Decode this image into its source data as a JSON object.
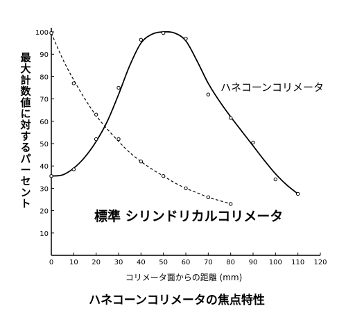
{
  "chart_data": {
    "type": "line",
    "title": "ハネコーンコリメータの焦点特性",
    "xlabel": "コリメータ面からの距離 (mm)",
    "ylabel": "最大計数値に対するパーセント",
    "xlim": [
      0,
      120
    ],
    "ylim": [
      0,
      100
    ],
    "x_ticks": [
      "0",
      "10",
      "20",
      "30",
      "40",
      "50",
      "60",
      "70",
      "80",
      "90",
      "100",
      "110",
      "120"
    ],
    "y_ticks": [
      "100",
      "90",
      "80",
      "70",
      "60",
      "50",
      "40",
      "30",
      "20",
      "10"
    ],
    "grid": false,
    "series": [
      {
        "name": "ハネコーンコリメータ",
        "style": "solid",
        "color": "#000000",
        "points": [
          [
            0,
            35.5
          ],
          [
            10,
            38.5
          ],
          [
            20,
            52
          ],
          [
            30,
            75
          ],
          [
            40,
            96.5
          ],
          [
            50,
            99.5
          ],
          [
            60,
            97
          ],
          [
            70,
            72
          ],
          [
            80,
            61.5
          ],
          [
            90,
            50.5
          ],
          [
            100,
            34
          ],
          [
            110,
            27.5
          ]
        ],
        "curve": [
          [
            0,
            35.5
          ],
          [
            5,
            36
          ],
          [
            10,
            39
          ],
          [
            15,
            44
          ],
          [
            20,
            51
          ],
          [
            25,
            60
          ],
          [
            30,
            72
          ],
          [
            35,
            85
          ],
          [
            40,
            95
          ],
          [
            45,
            99
          ],
          [
            50,
            100
          ],
          [
            55,
            99.5
          ],
          [
            60,
            96
          ],
          [
            65,
            87
          ],
          [
            70,
            77
          ],
          [
            75,
            69
          ],
          [
            80,
            62
          ],
          [
            85,
            55.5
          ],
          [
            90,
            49
          ],
          [
            95,
            42.5
          ],
          [
            100,
            36.5
          ],
          [
            105,
            31.5
          ],
          [
            110,
            27.5
          ]
        ]
      },
      {
        "name": "標準 シリンドリカルコリメータ",
        "style": "dashed",
        "color": "#000000",
        "points": [
          [
            0,
            99.5
          ],
          [
            10,
            77
          ],
          [
            20,
            63
          ],
          [
            30,
            52
          ],
          [
            40,
            42
          ],
          [
            50,
            35.5
          ],
          [
            60,
            30
          ],
          [
            70,
            26
          ],
          [
            80,
            23
          ]
        ],
        "curve": [
          [
            0,
            99.5
          ],
          [
            5,
            88
          ],
          [
            10,
            78.5
          ],
          [
            15,
            70
          ],
          [
            20,
            62.5
          ],
          [
            25,
            56.5
          ],
          [
            30,
            51
          ],
          [
            35,
            46
          ],
          [
            40,
            42
          ],
          [
            45,
            38.5
          ],
          [
            50,
            35.5
          ],
          [
            55,
            32.5
          ],
          [
            60,
            30
          ],
          [
            65,
            28
          ],
          [
            70,
            26
          ],
          [
            75,
            24.5
          ],
          [
            80,
            23
          ]
        ]
      }
    ]
  }
}
